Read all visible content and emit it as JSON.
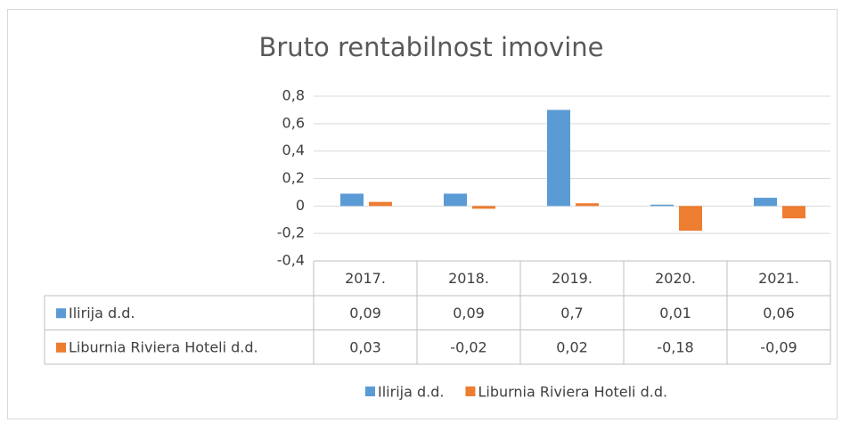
{
  "chart_data": {
    "type": "bar",
    "title": "Bruto rentabilnost imovine",
    "categories": [
      "2017.",
      "2018.",
      "2019.",
      "2020.",
      "2021."
    ],
    "series": [
      {
        "name": "Ilirija d.d.",
        "color": "#5b9bd5",
        "values": [
          0.09,
          0.09,
          0.7,
          0.01,
          0.06
        ],
        "value_labels": [
          "0,09",
          "0,09",
          "0,7",
          "0,01",
          "0,06"
        ]
      },
      {
        "name": "Liburnia Riviera Hoteli d.d.",
        "color": "#ed7d31",
        "values": [
          0.03,
          -0.02,
          0.02,
          -0.18,
          -0.09
        ],
        "value_labels": [
          "0,03",
          "-0,02",
          "0,02",
          "-0,18",
          "-0,09"
        ]
      }
    ],
    "ylim": [
      -0.4,
      0.8
    ],
    "yticks": [
      {
        "value": -0.4,
        "label": "-0,4"
      },
      {
        "value": -0.2,
        "label": "-0,2"
      },
      0,
      {
        "value": 0.2,
        "label": "0,2"
      },
      {
        "value": 0.4,
        "label": "0,4"
      },
      {
        "value": 0.6,
        "label": "0,6"
      },
      {
        "value": 0.8,
        "label": "0,8"
      }
    ],
    "grid": true,
    "legend": "bottom"
  }
}
